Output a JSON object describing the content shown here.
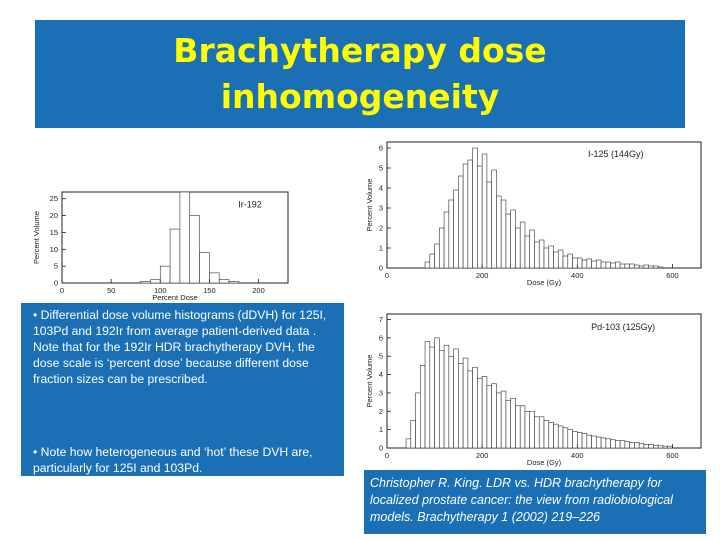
{
  "slide": {
    "title_line1": "Brachytherapy dose",
    "title_line2": "inhomogeneity",
    "caption_para1": "• Differential dose volume histograms (dDVH) for 125I, 103Pd and 192Ir from average patient-derived data . Note that for the 192Ir HDR brachytherapy DVH, the dose scale is ‘percent dose’ because different dose fraction sizes can be prescribed.",
    "caption_para2": "• Note how heterogeneous and ‘hot’ these DVH are, particularly for 125I and 103Pd.",
    "reference": "Christopher R. King. LDR vs. HDR brachytherapy for localized prostate cancer: the view from radiobiological models. Brachytherapy 1 (2002) 219–226"
  },
  "colors": {
    "title_bg": "#1a6fb5",
    "title_text": "#ffff00",
    "body_text": "#ffffff"
  },
  "chart_data": [
    {
      "type": "bar",
      "annotation": "Ir-192",
      "xlabel": "Percent Dose",
      "ylabel": "Percent Volume",
      "xlim": [
        0,
        230
      ],
      "ylim": [
        0,
        27
      ],
      "xticks": [
        0,
        50,
        100,
        150,
        200
      ],
      "yticks": [
        0,
        5,
        10,
        15,
        20,
        25
      ],
      "bin_width": 10,
      "x": [
        80,
        90,
        100,
        110,
        120,
        130,
        140,
        150,
        160,
        170
      ],
      "values": [
        0.5,
        1,
        5,
        16,
        27,
        20,
        9,
        3,
        1,
        0.5
      ]
    },
    {
      "type": "bar",
      "annotation": "I-125 (144Gy)",
      "xlabel": "Dose (Gy)",
      "ylabel": "Percent Volume",
      "xlim": [
        0,
        660
      ],
      "ylim": [
        0,
        6.3
      ],
      "xticks": [
        0,
        200,
        400,
        600
      ],
      "yticks": [
        0,
        1,
        2,
        3,
        4,
        5,
        6
      ],
      "bin_width": 10,
      "x": [
        80,
        90,
        100,
        110,
        120,
        130,
        140,
        150,
        160,
        170,
        180,
        190,
        200,
        210,
        220,
        230,
        240,
        250,
        260,
        270,
        280,
        290,
        300,
        310,
        320,
        330,
        340,
        350,
        360,
        370,
        380,
        390,
        400,
        410,
        420,
        430,
        440,
        450,
        460,
        470,
        480,
        490,
        500,
        510,
        520,
        530,
        540,
        550,
        560,
        570
      ],
      "values": [
        0.3,
        0.7,
        1.2,
        2.0,
        2.8,
        3.4,
        3.9,
        4.6,
        5.2,
        5.4,
        6.0,
        5.1,
        5.7,
        4.3,
        4.9,
        3.6,
        3.4,
        2.7,
        2.9,
        2.0,
        2.3,
        1.6,
        1.9,
        1.3,
        1.4,
        1.0,
        1.1,
        0.8,
        0.9,
        0.6,
        0.7,
        0.5,
        0.5,
        0.4,
        0.45,
        0.35,
        0.4,
        0.3,
        0.3,
        0.25,
        0.3,
        0.2,
        0.2,
        0.2,
        0.15,
        0.1,
        0.15,
        0.1,
        0.1,
        0.05
      ]
    },
    {
      "type": "bar",
      "annotation": "Pd-103 (125Gy)",
      "xlabel": "Dose (Gy)",
      "ylabel": "Percent Volume",
      "xlim": [
        0,
        660
      ],
      "ylim": [
        0,
        7.3
      ],
      "xticks": [
        0,
        200,
        400,
        600
      ],
      "yticks": [
        0,
        1,
        2,
        3,
        4,
        5,
        6,
        7
      ],
      "bin_width": 10,
      "x": [
        40,
        50,
        60,
        70,
        80,
        90,
        100,
        110,
        120,
        130,
        140,
        150,
        160,
        170,
        180,
        190,
        200,
        210,
        220,
        230,
        240,
        250,
        260,
        270,
        280,
        290,
        300,
        310,
        320,
        330,
        340,
        350,
        360,
        370,
        380,
        390,
        400,
        410,
        420,
        430,
        440,
        450,
        460,
        470,
        480,
        490,
        500,
        510,
        520,
        530,
        540,
        550,
        560,
        570,
        580,
        590
      ],
      "values": [
        0.5,
        1.5,
        3.0,
        4.5,
        5.8,
        5.5,
        6.0,
        5.3,
        5.6,
        5.0,
        5.4,
        4.6,
        4.9,
        4.2,
        4.4,
        3.8,
        3.9,
        3.4,
        3.5,
        3.0,
        3.1,
        2.6,
        2.7,
        2.3,
        2.3,
        2.0,
        2.0,
        1.7,
        1.7,
        1.5,
        1.4,
        1.3,
        1.2,
        1.1,
        1.0,
        0.9,
        0.85,
        0.8,
        0.7,
        0.65,
        0.6,
        0.55,
        0.5,
        0.45,
        0.4,
        0.4,
        0.35,
        0.3,
        0.3,
        0.25,
        0.2,
        0.2,
        0.15,
        0.15,
        0.1,
        0.1
      ]
    }
  ]
}
